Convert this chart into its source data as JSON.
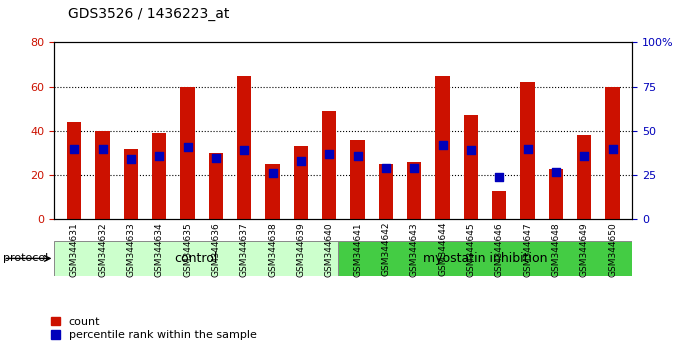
{
  "title": "GDS3526 / 1436223_at",
  "samples": [
    "GSM344631",
    "GSM344632",
    "GSM344633",
    "GSM344634",
    "GSM344635",
    "GSM344636",
    "GSM344637",
    "GSM344638",
    "GSM344639",
    "GSM344640",
    "GSM344641",
    "GSM344642",
    "GSM344643",
    "GSM344644",
    "GSM344645",
    "GSM344646",
    "GSM344647",
    "GSM344648",
    "GSM344649",
    "GSM344650"
  ],
  "count_values": [
    44,
    40,
    32,
    39,
    60,
    30,
    65,
    25,
    33,
    49,
    36,
    25,
    26,
    65,
    47,
    13,
    62,
    23,
    38,
    60
  ],
  "percentile_values": [
    40,
    40,
    34,
    36,
    41,
    35,
    39,
    26,
    33,
    37,
    36,
    29,
    29,
    42,
    39,
    24,
    40,
    27,
    36,
    40
  ],
  "control_count": 10,
  "myostatin_count": 10,
  "control_label": "control",
  "myostatin_label": "myostatin inhibition",
  "protocol_label": "protocol",
  "ylim_left": [
    0,
    80
  ],
  "ylim_right": [
    0,
    100
  ],
  "yticks_left": [
    0,
    20,
    40,
    60,
    80
  ],
  "yticks_left_labels": [
    "0",
    "20",
    "40",
    "60",
    "80"
  ],
  "yticks_right": [
    0,
    25,
    50,
    75,
    100
  ],
  "yticks_right_labels": [
    "0",
    "25",
    "50",
    "75",
    "100%"
  ],
  "bar_color": "#cc1100",
  "dot_color": "#0000bb",
  "bg_color": "#ffffff",
  "plot_bg_color": "#ffffff",
  "control_bg": "#ccffcc",
  "myostatin_bg": "#44cc44",
  "sample_bg": "#cccccc",
  "bar_width": 0.5,
  "dot_size": 30,
  "legend_count_label": "count",
  "legend_pct_label": "percentile rank within the sample"
}
